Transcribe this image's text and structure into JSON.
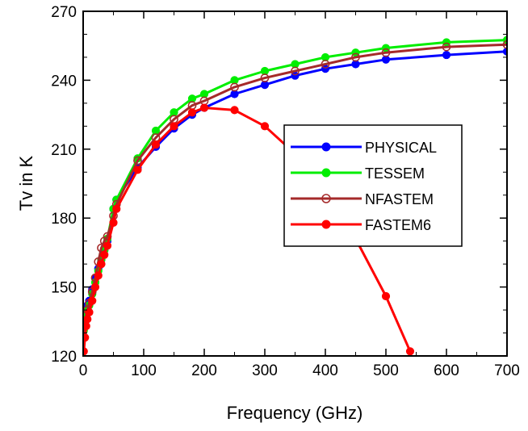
{
  "chart_data": {
    "type": "line",
    "xlabel": "Frequency (GHz)",
    "ylabel": "Tv in K",
    "xlim": [
      0,
      700
    ],
    "ylim": [
      120,
      270
    ],
    "xticks": [
      0,
      100,
      200,
      300,
      400,
      500,
      600,
      700
    ],
    "yticks": [
      120,
      150,
      180,
      210,
      240,
      270
    ],
    "grid": false,
    "legend_position": "center-right",
    "series": [
      {
        "name": "PHYSICAL",
        "color": "#0000ff",
        "marker": "filled-circle",
        "x": [
          1,
          3,
          5,
          7,
          10,
          15,
          20,
          25,
          30,
          35,
          40,
          50,
          55,
          90,
          120,
          150,
          180,
          200,
          250,
          300,
          350,
          400,
          450,
          500,
          600,
          700
        ],
        "y": [
          134,
          138,
          140,
          142,
          144,
          149,
          154,
          158,
          162,
          166,
          170,
          184,
          188,
          202,
          211,
          219,
          225,
          228,
          234,
          238,
          242,
          245,
          247,
          249,
          251,
          252.5
        ]
      },
      {
        "name": "TESSEM",
        "color": "#00ee00",
        "marker": "filled-circle",
        "x": [
          1,
          3,
          5,
          7,
          10,
          15,
          20,
          25,
          30,
          35,
          40,
          50,
          55,
          90,
          120,
          150,
          180,
          200,
          250,
          300,
          350,
          400,
          450,
          500,
          600,
          700
        ],
        "y": [
          131,
          135,
          138,
          140,
          142,
          147,
          152,
          157,
          162,
          166,
          171,
          184,
          188,
          206,
          218,
          226,
          232,
          234,
          240,
          244,
          247,
          250,
          252,
          254,
          256.5,
          257.5
        ]
      },
      {
        "name": "NFASTEM",
        "color": "#a52a2a",
        "marker": "open-circle",
        "x": [
          1,
          3,
          5,
          7,
          10,
          15,
          20,
          25,
          30,
          35,
          40,
          50,
          55,
          90,
          120,
          150,
          180,
          200,
          250,
          300,
          350,
          400,
          450,
          500,
          600,
          700
        ],
        "y": [
          128,
          133,
          138,
          140,
          143,
          148,
          154,
          161,
          167,
          170,
          172,
          181,
          186,
          205,
          215,
          223,
          229,
          231,
          237,
          241,
          244,
          247,
          250,
          252,
          254.5,
          255.5
        ]
      },
      {
        "name": "FASTEM6",
        "color": "#ff0000",
        "marker": "filled-circle",
        "x": [
          1,
          3,
          5,
          7,
          10,
          15,
          20,
          25,
          30,
          35,
          40,
          50,
          55,
          90,
          120,
          150,
          180,
          200,
          250,
          300,
          350,
          400,
          450,
          500,
          540
        ],
        "y": [
          122,
          128,
          133,
          136,
          139,
          144,
          150,
          155,
          160,
          164,
          168,
          178,
          184,
          201,
          212,
          220,
          226,
          228,
          227,
          220,
          208,
          192,
          171,
          146,
          122
        ]
      }
    ]
  }
}
